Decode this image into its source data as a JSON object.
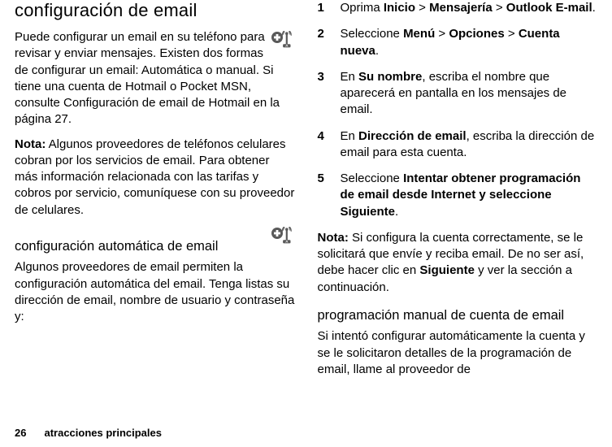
{
  "icon": {
    "fill": "#595959",
    "textfill": "#ffffff"
  },
  "left": {
    "title": "configuración de email",
    "intro": "Puede configurar un email en su teléfono para revisar y enviar mensajes. Existen dos formas de configurar un email: Automática o manual. Si tiene una cuenta de Hotmail o Pocket MSN, consulte Configuración de email de Hotmail en la página 27.",
    "note_label": "Nota:",
    "note_body": " Algunos proveedores de teléfonos celulares cobran por los servicios de email. Para obtener más información relacionada con las tarifas y cobros por servicio, comuníquese con su proveedor de celulares.",
    "sub1": "configuración automática de email",
    "sub1_body": "Algunos proveedores de email permiten la configuración automática del email. Tenga listas su dirección de email, nombre de usuario y contraseña y:"
  },
  "right": {
    "steps": [
      {
        "n": "1",
        "pre": "Oprima ",
        "b1": "Inicio",
        "mid1": " > ",
        "b2": "Mensajería",
        "mid2": " > ",
        "b3": "Outlook E-mail",
        "post": "."
      },
      {
        "n": "2",
        "pre": "Seleccione ",
        "b1": "Menú",
        "mid1": " > ",
        "b2": "Opciones",
        "mid2": " > ",
        "b3": "Cuenta nueva",
        "post": "."
      },
      {
        "n": "3",
        "pre": "En ",
        "b1": "Su nombre",
        "post": ", escriba el nombre que aparecerá en pantalla en los mensajes de email."
      },
      {
        "n": "4",
        "pre": "En ",
        "b1": "Dirección de email",
        "post": ", escriba la dirección de email para esta cuenta."
      },
      {
        "n": "5",
        "pre": "Seleccione ",
        "b1": "Intentar obtener programación de email desde Internet y seleccione Siguiente",
        "post": "."
      }
    ],
    "note_label": "Nota:",
    "note_body_a": " Si configura la cuenta correctamente, se le solicitará que envíe y reciba email. De no ser así, debe hacer clic en ",
    "note_bold": "Siguiente",
    "note_body_b": " y ver la sección a continuación.",
    "sub2": "programación manual de cuenta de email",
    "sub2_body": "Si intentó configurar automáticamente la cuenta y se le solicitaron detalles de la programación de email, llame al proveedor de"
  },
  "footer": {
    "page": "26",
    "section": "atracciones principales"
  }
}
